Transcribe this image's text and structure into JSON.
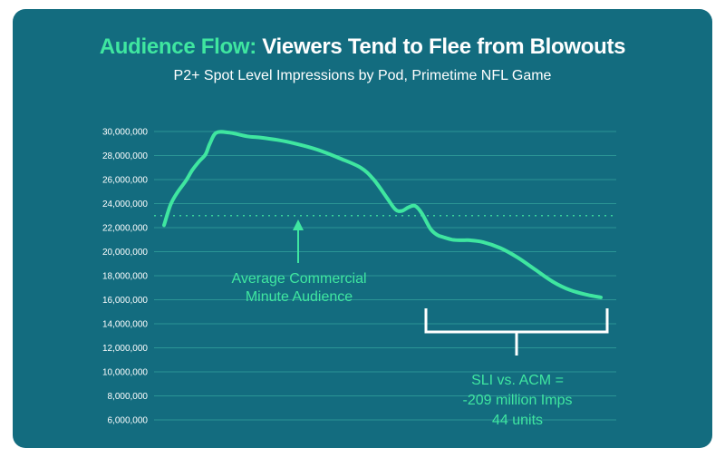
{
  "chart_data": {
    "type": "line",
    "title_accent": "Audience Flow:",
    "title_rest": " Viewers Tend to Flee from Blowouts",
    "subtitle": "P2+ Spot Level Impressions by Pod, Primetime NFL Game",
    "ylim": [
      6000000,
      30000000
    ],
    "y_ticks": [
      "30,000,000",
      "28,000,000",
      "26,000,000",
      "24,000,000",
      "22,000,000",
      "20,000,000",
      "18,000,000",
      "16,000,000",
      "14,000,000",
      "12,000,000",
      "10,000,000",
      "8,000,000",
      "6,000,000"
    ],
    "y_tick_values": [
      30000000,
      28000000,
      26000000,
      24000000,
      22000000,
      20000000,
      18000000,
      16000000,
      14000000,
      12000000,
      10000000,
      8000000,
      6000000
    ],
    "grid": true,
    "average_line_value": 23000000,
    "series": [
      {
        "name": "P2+ Spot Level Impressions",
        "x": [
          0,
          1.5,
          3,
          5,
          6.5,
          8,
          9.5,
          10.5,
          12,
          15,
          19,
          22,
          26,
          30,
          35,
          40,
          45,
          48,
          51,
          53,
          54.5,
          56,
          57.5,
          59,
          61,
          62.5,
          64,
          66,
          68,
          70,
          73,
          77,
          81,
          85,
          89,
          93,
          97,
          100
        ],
        "values": [
          22200000,
          23900000,
          24900000,
          25900000,
          26800000,
          27500000,
          28100000,
          29000000,
          29900000,
          29900000,
          29600000,
          29500000,
          29300000,
          29000000,
          28500000,
          27800000,
          27000000,
          26000000,
          24500000,
          23500000,
          23400000,
          23700000,
          23800000,
          23200000,
          21900000,
          21400000,
          21200000,
          21000000,
          20950000,
          20950000,
          20800000,
          20300000,
          19500000,
          18500000,
          17500000,
          16800000,
          16400000,
          16200000
        ]
      }
    ],
    "annotations": {
      "acm_line1": "Average Commercial",
      "acm_line2": "Minute Audience",
      "sli_line1": "SLI vs. ACM =",
      "sli_line2": "-209 million Imps",
      "sli_line3": "44 units"
    }
  },
  "colors": {
    "background": "#136c7f",
    "accent": "#3fe6a0",
    "text": "#ffffff",
    "grid": "#4fd0b4"
  }
}
